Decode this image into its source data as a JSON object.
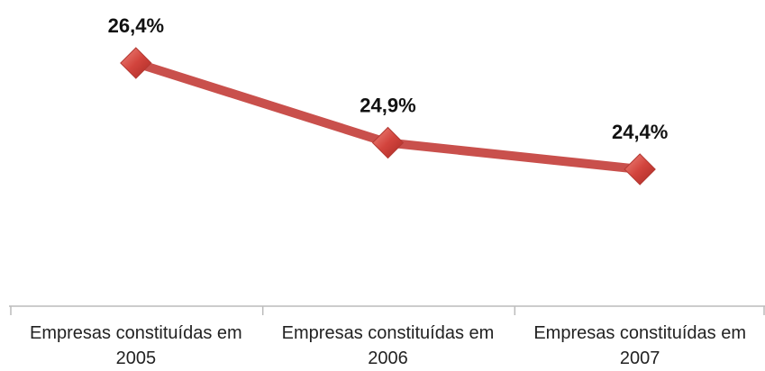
{
  "chart_data": {
    "type": "line",
    "categories": [
      "Empresas constituídas em 2005",
      "Empresas constituídas em 2006",
      "Empresas constituídas em 2007"
    ],
    "series": [
      {
        "color": "#c9504c",
        "values": [
          26.4,
          24.9,
          24.4
        ],
        "value_labels": [
          "26,4%",
          "24,9%",
          "24,4%"
        ]
      }
    ]
  }
}
